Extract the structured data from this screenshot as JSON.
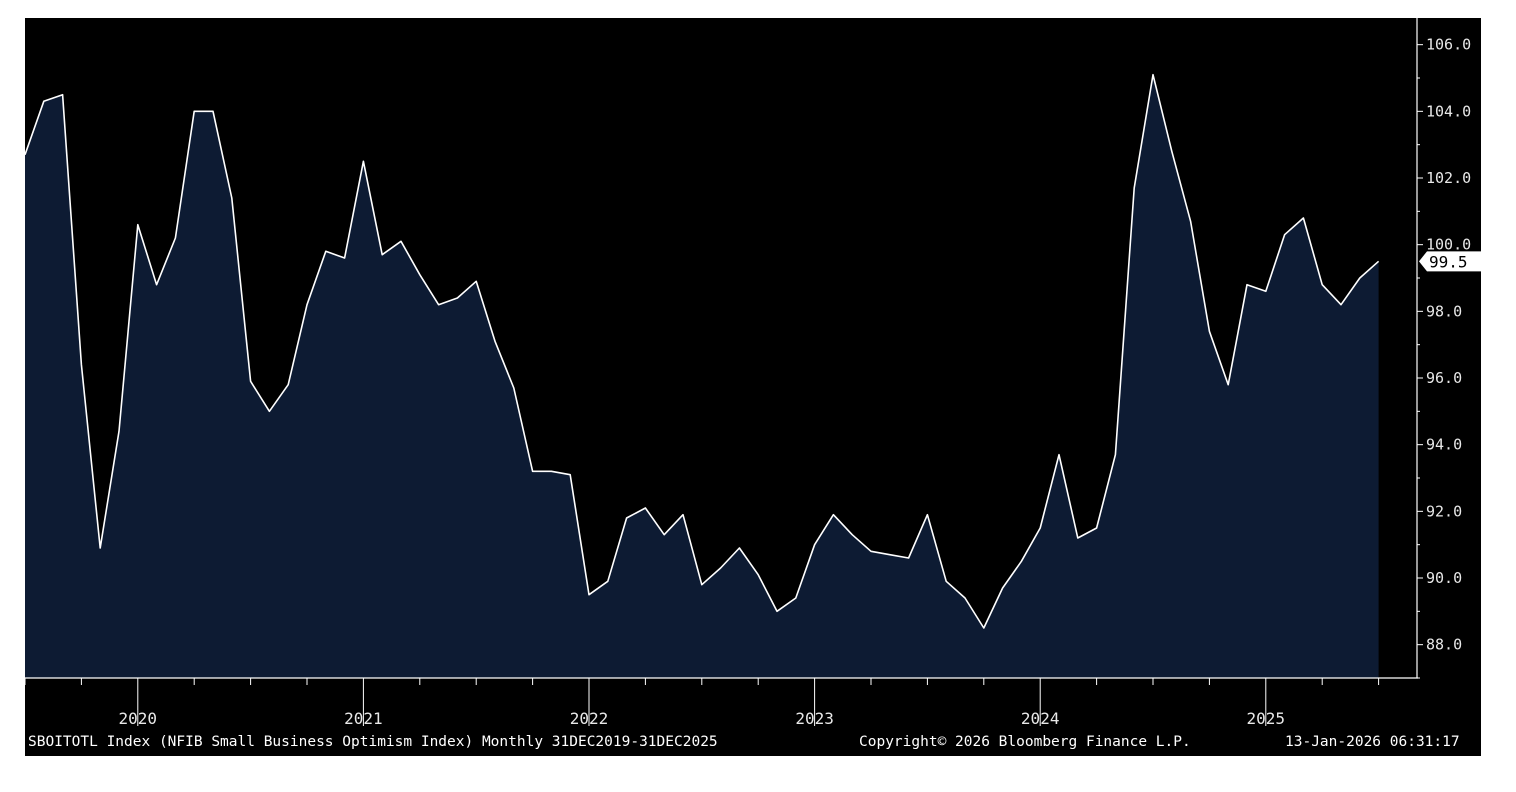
{
  "footer": {
    "description": "SBOITOTL Index (NFIB Small Business Optimism Index) Monthly 31DEC2019-31DEC2025",
    "copyright": "Copyright© 2026 Bloomberg Finance L.P.",
    "timestamp": "13-Jan-2026 06:31:17"
  },
  "colors": {
    "background": "#000000",
    "area_fill": "#0d1b33",
    "line": "#ffffff",
    "axis": "#ffffff",
    "last_value_badge": "#ffffff"
  },
  "chart_data": {
    "type": "area",
    "title": "",
    "xlabel": "",
    "ylabel": "",
    "ylim": [
      87.0,
      106.8
    ],
    "yticks": [
      88.0,
      90.0,
      92.0,
      94.0,
      96.0,
      98.0,
      100.0,
      102.0,
      104.0,
      106.0
    ],
    "ytick_labels": [
      "88.0",
      "90.0",
      "92.0",
      "94.0",
      "96.0",
      "98.0",
      "100.0",
      "102.0",
      "104.0",
      "106.0"
    ],
    "year_labels": [
      "2020",
      "2021",
      "2022",
      "2023",
      "2024",
      "2025"
    ],
    "x_start": "2019-12",
    "x_end": "2025-12",
    "frequency": "monthly",
    "grid": false,
    "legend": "none",
    "last_value_label": "99.5",
    "values": [
      102.7,
      104.3,
      104.5,
      96.4,
      90.9,
      94.4,
      100.6,
      98.8,
      100.2,
      104.0,
      104.0,
      101.4,
      95.9,
      95.0,
      95.8,
      98.2,
      99.8,
      99.6,
      102.5,
      99.7,
      100.1,
      99.1,
      98.2,
      98.4,
      98.9,
      97.1,
      95.7,
      93.2,
      93.2,
      93.1,
      89.5,
      89.9,
      91.8,
      92.1,
      91.3,
      91.9,
      89.8,
      90.3,
      90.9,
      90.1,
      89.0,
      89.4,
      91.0,
      91.9,
      91.3,
      90.8,
      90.7,
      90.6,
      91.9,
      89.9,
      89.4,
      88.5,
      89.7,
      90.5,
      91.5,
      93.7,
      91.2,
      91.5,
      93.7,
      101.7,
      105.1,
      102.8,
      100.7,
      97.4,
      95.8,
      98.8,
      98.6,
      100.3,
      100.8,
      98.8,
      98.2,
      99.0,
      99.5
    ]
  }
}
